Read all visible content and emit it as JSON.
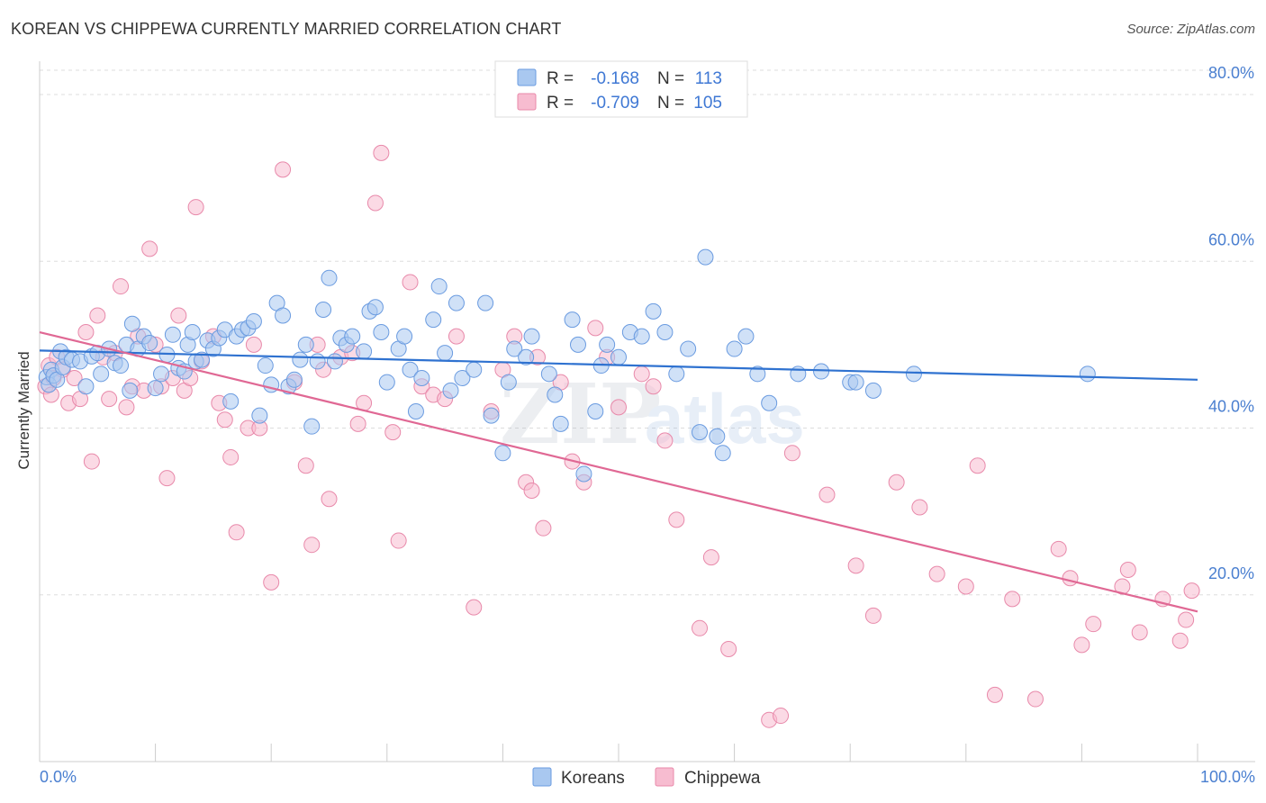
{
  "header": {
    "title": "KOREAN VS CHIPPEWA CURRENTLY MARRIED CORRELATION CHART",
    "source": "Source: ZipAtlas.com"
  },
  "watermark": {
    "zip": "ZIP",
    "atlas": "atlas"
  },
  "legend": {
    "rows": [
      {
        "r_label": "R =",
        "r_value": "-0.168",
        "n_label": "N =",
        "n_value": "113"
      },
      {
        "r_label": "R =",
        "r_value": "-0.709",
        "n_label": "N =",
        "n_value": "105"
      }
    ]
  },
  "bottom_legend": {
    "koreans": "Koreans",
    "chippewa": "Chippewa"
  },
  "chart_data": {
    "type": "scatter",
    "title": "KOREAN VS CHIPPEWA CURRENTLY MARRIED CORRELATION CHART",
    "xlabel": "",
    "ylabel": "Currently Married",
    "xlim": [
      0,
      100
    ],
    "ylim": [
      0,
      84
    ],
    "x_tick_labels": [
      "0.0%",
      "100.0%"
    ],
    "y_ticks": [
      20,
      40,
      60,
      80
    ],
    "y_tick_labels": [
      "20.0%",
      "40.0%",
      "60.0%",
      "80.0%"
    ],
    "grid": true,
    "legend_position": "top-center",
    "colors": {
      "koreans_fill": "#a9c8f0",
      "koreans_stroke": "#6a9be0",
      "koreans_line": "#2f72d0",
      "chippewa_fill": "#f7bcd0",
      "chippewa_stroke": "#e889aa",
      "chippewa_line": "#e06894"
    },
    "series": [
      {
        "name": "Koreans",
        "trend": {
          "x": [
            0,
            100
          ],
          "y": [
            49.3,
            45.8
          ]
        },
        "points": [
          [
            0.6,
            46.1
          ],
          [
            0.8,
            45.2
          ],
          [
            1.0,
            47.0
          ],
          [
            1.2,
            46.3
          ],
          [
            1.5,
            45.8
          ],
          [
            1.8,
            49.2
          ],
          [
            2.0,
            47.3
          ],
          [
            2.3,
            48.5
          ],
          [
            2.8,
            48.2
          ],
          [
            3.5,
            48.0
          ],
          [
            4.0,
            45.0
          ],
          [
            4.5,
            48.6
          ],
          [
            5.0,
            49.0
          ],
          [
            5.3,
            46.5
          ],
          [
            6.0,
            49.5
          ],
          [
            6.5,
            47.8
          ],
          [
            7.0,
            47.5
          ],
          [
            7.5,
            50.0
          ],
          [
            7.8,
            44.5
          ],
          [
            8.0,
            52.5
          ],
          [
            8.5,
            49.5
          ],
          [
            9.0,
            51.0
          ],
          [
            9.5,
            50.2
          ],
          [
            10.0,
            44.8
          ],
          [
            10.5,
            46.5
          ],
          [
            11.0,
            48.8
          ],
          [
            11.5,
            51.2
          ],
          [
            12.0,
            47.2
          ],
          [
            12.5,
            46.8
          ],
          [
            12.8,
            50.0
          ],
          [
            13.2,
            51.5
          ],
          [
            13.5,
            48.0
          ],
          [
            14.0,
            48.2
          ],
          [
            14.5,
            50.5
          ],
          [
            15.0,
            49.5
          ],
          [
            15.5,
            50.8
          ],
          [
            16.0,
            51.8
          ],
          [
            16.5,
            43.2
          ],
          [
            17.0,
            51.0
          ],
          [
            17.5,
            51.8
          ],
          [
            18.0,
            52.0
          ],
          [
            18.5,
            52.8
          ],
          [
            19.0,
            41.5
          ],
          [
            19.5,
            47.5
          ],
          [
            20.0,
            45.2
          ],
          [
            20.5,
            55.0
          ],
          [
            21.0,
            53.5
          ],
          [
            21.5,
            45.0
          ],
          [
            22.0,
            45.8
          ],
          [
            22.5,
            48.2
          ],
          [
            23.0,
            50.0
          ],
          [
            23.5,
            40.2
          ],
          [
            24.0,
            48.0
          ],
          [
            24.5,
            54.2
          ],
          [
            25.0,
            58.0
          ],
          [
            25.5,
            48.0
          ],
          [
            26.0,
            50.8
          ],
          [
            26.5,
            50.0
          ],
          [
            27.0,
            51.0
          ],
          [
            28.0,
            49.2
          ],
          [
            28.5,
            54.0
          ],
          [
            29.0,
            54.5
          ],
          [
            29.5,
            51.5
          ],
          [
            30.0,
            45.5
          ],
          [
            31.0,
            49.5
          ],
          [
            31.5,
            51.0
          ],
          [
            32.0,
            47.0
          ],
          [
            32.5,
            42.0
          ],
          [
            33.0,
            46.0
          ],
          [
            34.0,
            53.0
          ],
          [
            34.5,
            57.0
          ],
          [
            35.0,
            49.0
          ],
          [
            35.5,
            44.5
          ],
          [
            36.0,
            55.0
          ],
          [
            36.5,
            46.0
          ],
          [
            37.5,
            47.0
          ],
          [
            38.5,
            55.0
          ],
          [
            39.0,
            41.5
          ],
          [
            40.0,
            37.0
          ],
          [
            40.5,
            45.5
          ],
          [
            41.0,
            49.5
          ],
          [
            42.0,
            48.5
          ],
          [
            42.5,
            51.0
          ],
          [
            44.0,
            46.5
          ],
          [
            44.5,
            44.0
          ],
          [
            45.0,
            40.5
          ],
          [
            46.0,
            53.0
          ],
          [
            46.5,
            50.0
          ],
          [
            47.0,
            34.5
          ],
          [
            48.0,
            42.0
          ],
          [
            48.5,
            47.5
          ],
          [
            49.0,
            50.0
          ],
          [
            50.0,
            48.5
          ],
          [
            51.0,
            51.5
          ],
          [
            52.0,
            51.0
          ],
          [
            53.0,
            54.0
          ],
          [
            54.0,
            51.5
          ],
          [
            55.0,
            46.5
          ],
          [
            56.0,
            49.5
          ],
          [
            57.0,
            39.5
          ],
          [
            57.5,
            60.5
          ],
          [
            58.5,
            39.0
          ],
          [
            59.0,
            37.0
          ],
          [
            60.0,
            49.5
          ],
          [
            61.0,
            51.0
          ],
          [
            62.0,
            46.5
          ],
          [
            63.0,
            43.0
          ],
          [
            65.5,
            46.5
          ],
          [
            67.5,
            46.8
          ],
          [
            70.0,
            45.5
          ],
          [
            70.5,
            45.5
          ],
          [
            72.0,
            44.5
          ],
          [
            75.5,
            46.5
          ],
          [
            90.5,
            46.5
          ]
        ]
      },
      {
        "name": "Chippewa",
        "trend": {
          "x": [
            0,
            100
          ],
          "y": [
            51.5,
            18.0
          ]
        },
        "points": [
          [
            0.5,
            45.0
          ],
          [
            0.8,
            47.5
          ],
          [
            1.0,
            44.0
          ],
          [
            1.2,
            46.0
          ],
          [
            1.5,
            48.5
          ],
          [
            2.0,
            47.0
          ],
          [
            2.5,
            43.0
          ],
          [
            3.0,
            46.0
          ],
          [
            3.5,
            43.5
          ],
          [
            4.0,
            51.5
          ],
          [
            4.5,
            36.0
          ],
          [
            5.0,
            53.5
          ],
          [
            5.5,
            48.5
          ],
          [
            6.0,
            43.5
          ],
          [
            6.5,
            49.0
          ],
          [
            7.0,
            57.0
          ],
          [
            7.5,
            42.5
          ],
          [
            8.0,
            45.0
          ],
          [
            8.5,
            51.0
          ],
          [
            9.0,
            44.5
          ],
          [
            9.5,
            61.5
          ],
          [
            10.0,
            50.0
          ],
          [
            10.5,
            45.0
          ],
          [
            11.0,
            34.0
          ],
          [
            11.5,
            46.0
          ],
          [
            12.0,
            53.5
          ],
          [
            12.5,
            44.5
          ],
          [
            13.0,
            46.0
          ],
          [
            13.5,
            66.5
          ],
          [
            14.0,
            48.0
          ],
          [
            15.0,
            51.0
          ],
          [
            15.5,
            43.0
          ],
          [
            16.0,
            41.0
          ],
          [
            16.5,
            36.5
          ],
          [
            17.0,
            27.5
          ],
          [
            18.0,
            40.0
          ],
          [
            18.5,
            50.0
          ],
          [
            19.0,
            40.0
          ],
          [
            20.0,
            21.5
          ],
          [
            21.0,
            71.0
          ],
          [
            22.0,
            45.5
          ],
          [
            23.0,
            35.5
          ],
          [
            23.5,
            26.0
          ],
          [
            24.0,
            50.0
          ],
          [
            24.5,
            47.0
          ],
          [
            25.0,
            31.5
          ],
          [
            26.0,
            48.5
          ],
          [
            27.0,
            49.0
          ],
          [
            27.5,
            40.5
          ],
          [
            28.0,
            43.0
          ],
          [
            29.0,
            67.0
          ],
          [
            29.5,
            73.0
          ],
          [
            30.5,
            39.5
          ],
          [
            31.0,
            26.5
          ],
          [
            32.0,
            57.5
          ],
          [
            33.0,
            45.0
          ],
          [
            34.0,
            44.0
          ],
          [
            35.0,
            43.5
          ],
          [
            36.0,
            51.0
          ],
          [
            37.5,
            18.5
          ],
          [
            39.0,
            42.0
          ],
          [
            40.0,
            47.0
          ],
          [
            41.0,
            51.0
          ],
          [
            42.0,
            33.5
          ],
          [
            42.5,
            32.5
          ],
          [
            43.0,
            48.5
          ],
          [
            43.5,
            28.0
          ],
          [
            45.0,
            45.5
          ],
          [
            46.0,
            36.0
          ],
          [
            47.0,
            33.5
          ],
          [
            48.0,
            52.0
          ],
          [
            49.0,
            48.5
          ],
          [
            50.0,
            42.5
          ],
          [
            52.0,
            46.5
          ],
          [
            53.0,
            45.0
          ],
          [
            54.0,
            38.5
          ],
          [
            55.0,
            29.0
          ],
          [
            57.0,
            16.0
          ],
          [
            58.0,
            24.5
          ],
          [
            59.5,
            13.5
          ],
          [
            63.0,
            5.0
          ],
          [
            64.0,
            5.5
          ],
          [
            65.0,
            37.0
          ],
          [
            68.0,
            32.0
          ],
          [
            70.5,
            23.5
          ],
          [
            72.0,
            17.5
          ],
          [
            74.0,
            33.5
          ],
          [
            76.0,
            30.5
          ],
          [
            77.5,
            22.5
          ],
          [
            80.0,
            21.0
          ],
          [
            81.0,
            35.5
          ],
          [
            82.5,
            8.0
          ],
          [
            84.0,
            19.5
          ],
          [
            86.0,
            7.5
          ],
          [
            88.0,
            25.5
          ],
          [
            89.0,
            22.0
          ],
          [
            90.0,
            14.0
          ],
          [
            91.0,
            16.5
          ],
          [
            93.5,
            21.0
          ],
          [
            94.0,
            23.0
          ],
          [
            95.0,
            15.5
          ],
          [
            97.0,
            19.5
          ],
          [
            98.5,
            14.5
          ],
          [
            99.0,
            17.0
          ],
          [
            99.5,
            20.5
          ]
        ]
      }
    ]
  }
}
